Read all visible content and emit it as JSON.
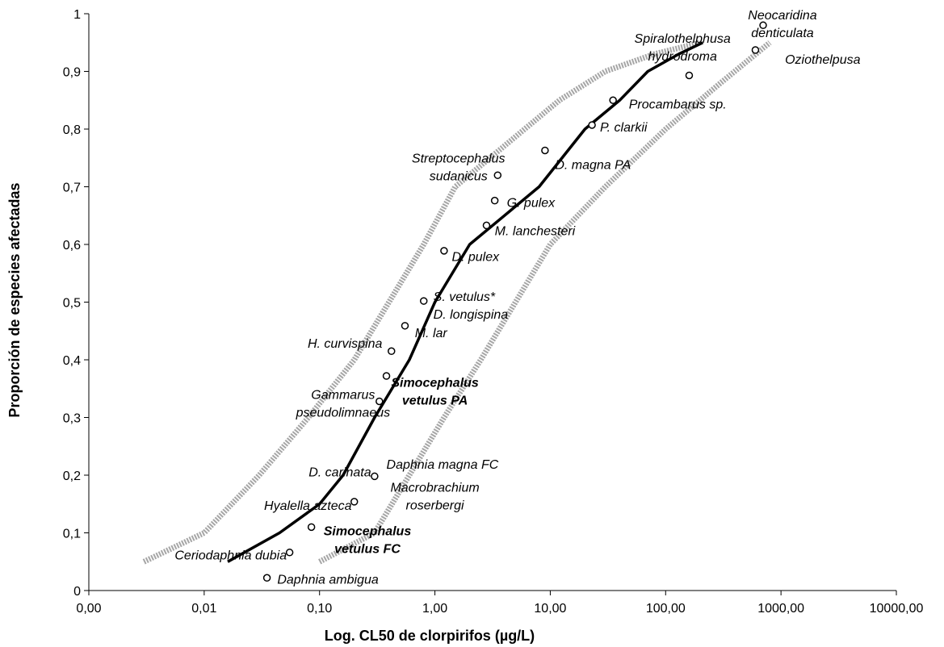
{
  "chart_data": {
    "type": "scatter",
    "title": "",
    "xlabel": "Log. CL50 de clorpirifos (µg/L)",
    "ylabel": "Proporción de especies afectadas",
    "x_scale": "log",
    "xlim": [
      0.001,
      10000
    ],
    "ylim": [
      0,
      1
    ],
    "x_tick_labels": [
      "0,00",
      "0,01",
      "0,10",
      "1,00",
      "10,00",
      "100,00",
      "1000,00",
      "10000,00"
    ],
    "y_tick_labels": [
      "0",
      "0,1",
      "0,2",
      "0,3",
      "0,4",
      "0,5",
      "0,6",
      "0,7",
      "0,8",
      "0,9",
      "1"
    ],
    "grid": false,
    "legend": "none",
    "colors": {
      "fit_line": "#000000",
      "confidence_band": "#a6a6a6",
      "points": "#000000"
    },
    "points": [
      {
        "x": 0.035,
        "y": 0.022
      },
      {
        "x": 0.055,
        "y": 0.066
      },
      {
        "x": 0.085,
        "y": 0.11
      },
      {
        "x": 0.2,
        "y": 0.154
      },
      {
        "x": 0.3,
        "y": 0.198
      },
      {
        "x": 0.33,
        "y": 0.328
      },
      {
        "x": 0.38,
        "y": 0.372
      },
      {
        "x": 0.42,
        "y": 0.415
      },
      {
        "x": 0.55,
        "y": 0.459
      },
      {
        "x": 0.8,
        "y": 0.502
      },
      {
        "x": 1.2,
        "y": 0.589
      },
      {
        "x": 2.8,
        "y": 0.633
      },
      {
        "x": 3.3,
        "y": 0.676
      },
      {
        "x": 3.5,
        "y": 0.72
      },
      {
        "x": 9.0,
        "y": 0.763
      },
      {
        "x": 23,
        "y": 0.807
      },
      {
        "x": 35,
        "y": 0.85
      },
      {
        "x": 160,
        "y": 0.893
      },
      {
        "x": 600,
        "y": 0.937
      },
      {
        "x": 700,
        "y": 0.98
      }
    ],
    "fit_line": {
      "x": [
        0.016,
        0.045,
        0.1,
        0.16,
        0.3,
        0.6,
        1.0,
        2.0,
        4.0,
        8.0,
        20,
        40,
        70,
        130,
        210
      ],
      "y": [
        0.05,
        0.1,
        0.15,
        0.2,
        0.3,
        0.4,
        0.5,
        0.6,
        0.65,
        0.7,
        0.8,
        0.85,
        0.9,
        0.93,
        0.95
      ]
    },
    "lower_band": {
      "x": [
        0.003,
        0.01,
        0.03,
        0.08,
        0.2,
        0.4,
        0.8,
        1.5,
        3,
        6,
        12,
        30,
        80,
        200
      ],
      "y": [
        0.05,
        0.1,
        0.2,
        0.3,
        0.4,
        0.5,
        0.6,
        0.7,
        0.75,
        0.8,
        0.85,
        0.9,
        0.93,
        0.95
      ]
    },
    "upper_band": {
      "x": [
        0.1,
        0.3,
        0.6,
        1.2,
        2.5,
        5,
        10,
        30,
        100,
        300,
        800
      ],
      "y": [
        0.05,
        0.1,
        0.2,
        0.3,
        0.4,
        0.5,
        0.6,
        0.7,
        0.8,
        0.88,
        0.95
      ]
    },
    "annotations": [
      {
        "lines": [
          "Neocaridina",
          "denticulata"
        ],
        "x": 1030,
        "y": 0.99,
        "anchor": "middle",
        "bold": false
      },
      {
        "lines": [
          "Spiralothelphusa",
          "hydrodroma"
        ],
        "x": 140,
        "y": 0.95,
        "anchor": "middle",
        "bold": false
      },
      {
        "lines": [
          "Oziothelpusa"
        ],
        "x": 2300,
        "y": 0.913,
        "anchor": "middle",
        "bold": false
      },
      {
        "lines": [
          "Procambarus sp."
        ],
        "x": 48,
        "y": 0.836,
        "anchor": "start",
        "bold": false
      },
      {
        "lines": [
          "P. clarkii"
        ],
        "x": 27,
        "y": 0.796,
        "anchor": "start",
        "bold": false
      },
      {
        "lines": [
          "Streptocephalus",
          "sudanicus"
        ],
        "x": 1.6,
        "y": 0.742,
        "anchor": "middle",
        "bold": false
      },
      {
        "lines": [
          "D. magna PA"
        ],
        "x": 11,
        "y": 0.731,
        "anchor": "start",
        "bold": false
      },
      {
        "lines": [
          "G. pulex"
        ],
        "x": 4.2,
        "y": 0.665,
        "anchor": "start",
        "bold": false
      },
      {
        "lines": [
          "M. lanchesteri"
        ],
        "x": 3.3,
        "y": 0.616,
        "anchor": "start",
        "bold": false
      },
      {
        "lines": [
          "D. pulex"
        ],
        "x": 1.4,
        "y": 0.571,
        "anchor": "start",
        "bold": false
      },
      {
        "lines": [
          "S. vetulus*"
        ],
        "x": 0.97,
        "y": 0.502,
        "anchor": "start",
        "bold": false
      },
      {
        "lines": [
          "D. longispina"
        ],
        "x": 0.97,
        "y": 0.471,
        "anchor": "start",
        "bold": false
      },
      {
        "lines": [
          "M. lar"
        ],
        "x": 0.67,
        "y": 0.439,
        "anchor": "start",
        "bold": false
      },
      {
        "lines": [
          "H. curvispina"
        ],
        "x": 0.35,
        "y": 0.421,
        "anchor": "end",
        "bold": false
      },
      {
        "lines": [
          "Simocephalus",
          "vetulus PA"
        ],
        "x": 1.0,
        "y": 0.353,
        "anchor": "middle",
        "bold": true
      },
      {
        "lines": [
          "Gammarus",
          "pseudolimnaeus"
        ],
        "x": 0.16,
        "y": 0.332,
        "anchor": "middle",
        "bold": false
      },
      {
        "lines": [
          "Daphnia magna FC"
        ],
        "x": 0.38,
        "y": 0.211,
        "anchor": "start",
        "bold": false
      },
      {
        "lines": [
          "D. carinata"
        ],
        "x": 0.28,
        "y": 0.198,
        "anchor": "end",
        "bold": false
      },
      {
        "lines": [
          "Macrobrachium",
          "roserbergi"
        ],
        "x": 1.0,
        "y": 0.171,
        "anchor": "middle",
        "bold": false
      },
      {
        "lines": [
          "Hyalella azteca"
        ],
        "x": 0.19,
        "y": 0.14,
        "anchor": "end",
        "bold": false
      },
      {
        "lines": [
          "Simocephalus",
          "vetulus FC"
        ],
        "x": 0.26,
        "y": 0.096,
        "anchor": "middle",
        "bold": true
      },
      {
        "lines": [
          "Ceriodaphnia dubia"
        ],
        "x": 0.052,
        "y": 0.054,
        "anchor": "end",
        "bold": false
      },
      {
        "lines": [
          "Daphnia ambigua"
        ],
        "x": 0.043,
        "y": 0.012,
        "anchor": "start",
        "bold": false
      }
    ]
  }
}
